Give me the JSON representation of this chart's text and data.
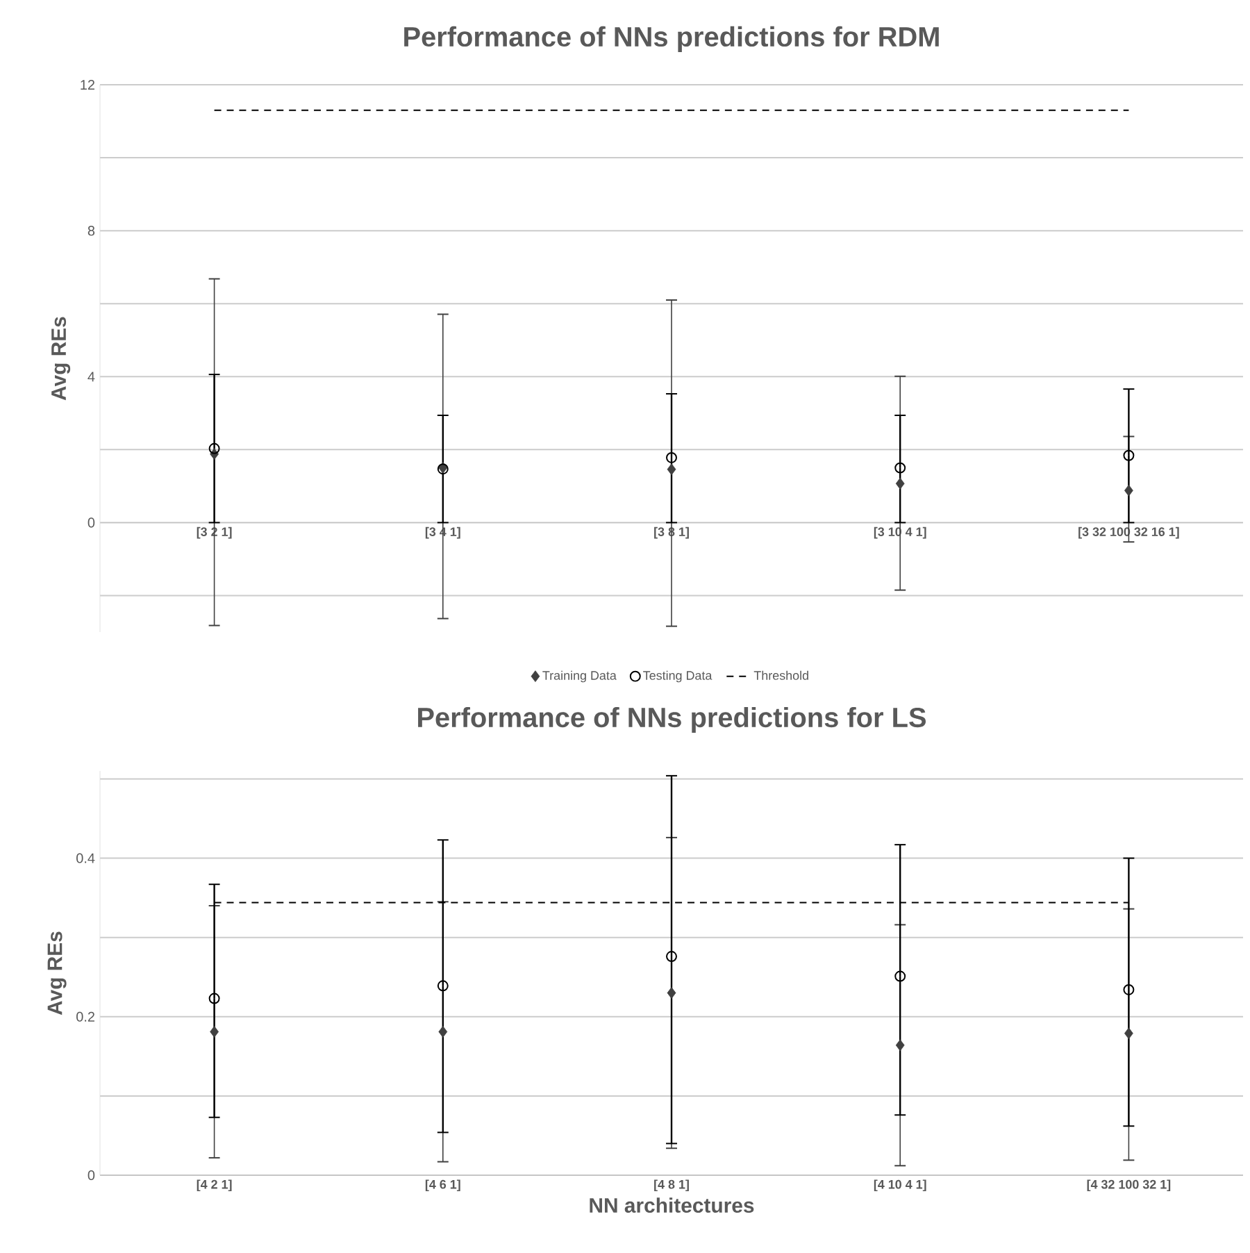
{
  "chart_data": [
    {
      "type": "scatter",
      "title": "Performance of NNs predictions for RDM",
      "ylabel": "Avg REs",
      "categories": [
        "[3 2 1]",
        "[3 4 1]",
        "[3 8 1]",
        "[3 10 4 1]",
        "[3 32 100 32 16 1]"
      ],
      "series": [
        {
          "name": "Training Data",
          "color": "#404040",
          "marker": "diamond",
          "values": [
            1.88,
            1.5,
            1.46,
            1.07,
            0.88
          ],
          "errors": [
            [
              -2.82,
              6.68
            ],
            [
              -2.63,
              5.71
            ],
            [
              -2.84,
              6.1
            ],
            [
              -1.85,
              4.01
            ],
            [
              -0.53,
              2.36
            ]
          ]
        },
        {
          "name": "Testing Data",
          "color": "#000000",
          "marker": "circle",
          "values": [
            2.03,
            1.47,
            1.78,
            1.5,
            1.84
          ],
          "errors": [
            [
              0,
              4.06
            ],
            [
              0,
              2.94
            ],
            [
              0,
              3.53
            ],
            [
              0,
              2.94
            ],
            [
              0,
              3.66
            ]
          ]
        },
        {
          "name": "Threshold",
          "type": "line",
          "color": "#000000",
          "line_style": "dashed",
          "marker": "none",
          "values": [
            11.3,
            11.3,
            11.3,
            11.3,
            11.3
          ]
        }
      ],
      "ylim": [
        -3,
        12
      ],
      "yticks": [
        {
          "value": -2,
          "label": null
        },
        0,
        {
          "value": 2,
          "label": null
        },
        4,
        {
          "value": 6,
          "label": null
        },
        8,
        {
          "value": 10,
          "label": null
        },
        12
      ],
      "grid": "y",
      "legend": "bottom"
    },
    {
      "type": "scatter",
      "title": "Performance of NNs predictions for LS",
      "ylabel": "Avg REs",
      "xlabel": "NN architectures",
      "categories": [
        "[4 2 1]",
        "[4 6 1]",
        "[4 8 1]",
        "[4 10 4 1]",
        "[4 32 100 32 1]"
      ],
      "series": [
        {
          "color": "#404040",
          "marker": "diamond",
          "values": [
            0.181,
            0.181,
            0.23,
            0.164,
            0.179
          ],
          "errors": [
            [
              0.022,
              0.34
            ],
            [
              0.017,
              0.345
            ],
            [
              0.034,
              0.426
            ],
            [
              0.012,
              0.316
            ],
            [
              0.019,
              0.336
            ]
          ]
        },
        {
          "color": "#000000",
          "marker": "circle",
          "values": [
            0.223,
            0.239,
            0.276,
            0.251,
            0.234
          ],
          "errors": [
            [
              0.073,
              0.367
            ],
            [
              0.054,
              0.423
            ],
            [
              0.04,
              0.504
            ],
            [
              0.076,
              0.417
            ],
            [
              0.062,
              0.4
            ]
          ]
        },
        {
          "type": "line",
          "color": "#000000",
          "line_style": "dashed",
          "marker": "none",
          "values": [
            0.344,
            0.344,
            0.344,
            0.344,
            0.344
          ]
        }
      ],
      "ylim": [
        0,
        0.51
      ],
      "yticks": [
        0,
        {
          "value": 0.1,
          "label": null
        },
        0.2,
        {
          "value": 0.3,
          "label": null
        },
        0.4,
        {
          "value": 0.5,
          "label": null
        }
      ],
      "grid": "y"
    }
  ]
}
